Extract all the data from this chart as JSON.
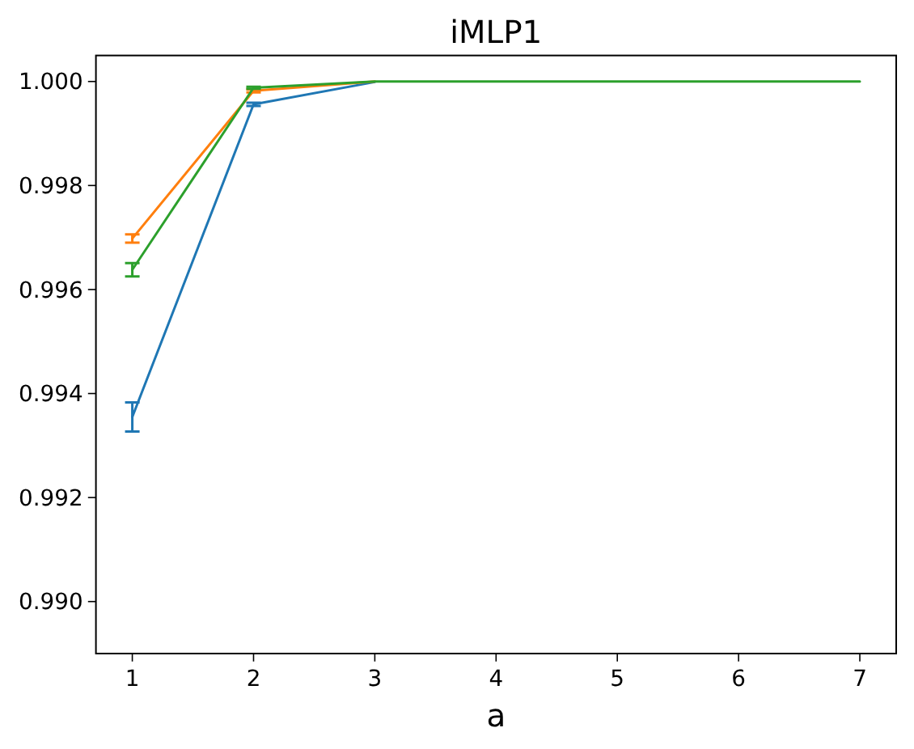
{
  "chart_data": {
    "type": "line",
    "title": "iMLP1",
    "xlabel": "a",
    "x": [
      1,
      2,
      3,
      4,
      5,
      6,
      7
    ],
    "series": [
      {
        "color": "#1f77b4",
        "values": [
          0.99355,
          0.99956,
          0.99999,
          null,
          null,
          null,
          null
        ],
        "errors": [
          0.00028,
          3e-05,
          null,
          null,
          null,
          null,
          null
        ]
      },
      {
        "color": "#ff7f0e",
        "values": [
          0.99698,
          0.99982,
          1.0,
          null,
          null,
          null,
          null
        ],
        "errors": [
          8e-05,
          3e-05,
          null,
          null,
          null,
          null,
          null
        ]
      },
      {
        "color": "#2ca02c",
        "values": [
          0.99638,
          0.99988,
          1.0,
          1.0,
          1.0,
          1.0,
          1.0
        ],
        "errors": [
          0.00013,
          2e-05,
          null,
          null,
          null,
          null,
          null
        ]
      }
    ],
    "xlim": [
      0.7,
      7.3
    ],
    "ylim": [
      0.989,
      1.0005
    ],
    "xticks": [
      1,
      2,
      3,
      4,
      5,
      6,
      7
    ],
    "yticks": [
      {
        "value": 0.99,
        "label": "0.990"
      },
      {
        "value": 0.992,
        "label": "0.992"
      },
      {
        "value": 0.994,
        "label": "0.994"
      },
      {
        "value": 0.996,
        "label": "0.996"
      },
      {
        "value": 0.998,
        "label": "0.998"
      },
      {
        "value": 1.0,
        "label": "1.000"
      }
    ],
    "grid": false,
    "line_style": "solid"
  }
}
